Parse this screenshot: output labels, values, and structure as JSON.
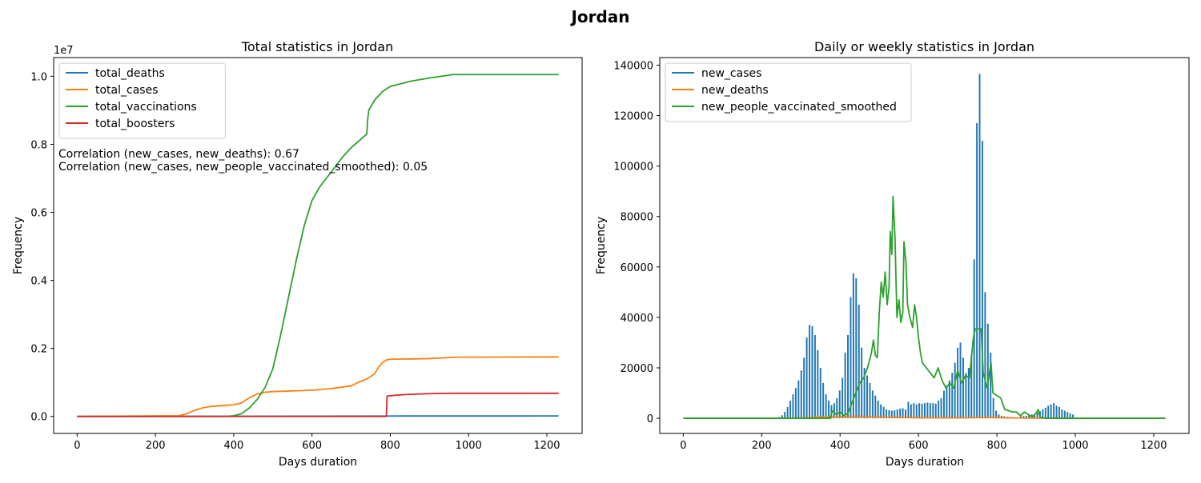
{
  "figure": {
    "title": "Jordan"
  },
  "chart_data": [
    {
      "type": "line",
      "title": "Total statistics in Jordan",
      "xlabel": "Days duration",
      "ylabel": "Frequency",
      "offset_text": "1e7",
      "xlim": [
        -60,
        1290
      ],
      "ylim": [
        -0.05,
        1.055
      ],
      "y_scale_note": "values in units of 1e7",
      "xticks": [
        0,
        200,
        400,
        600,
        800,
        1000,
        1200
      ],
      "yticks": [
        0.0,
        0.2,
        0.4,
        0.6,
        0.8,
        1.0
      ],
      "ytick_labels": [
        "0.0",
        "0.2",
        "0.4",
        "0.6",
        "0.8",
        "1.0"
      ],
      "legend_position": "upper-left",
      "annotations": [
        "Correlation (new_cases, new_deaths): 0.67",
        "Correlation (new_cases, new_people_vaccinated_smoothed): 0.05"
      ],
      "series": [
        {
          "name": "total_deaths",
          "color": "#1f77b4",
          "points": [
            [
              0,
              0
            ],
            [
              400,
              0.0005
            ],
            [
              800,
              0.0012
            ],
            [
              1230,
              0.0014
            ]
          ]
        },
        {
          "name": "total_cases",
          "color": "#ff7f0e",
          "points": [
            [
              0,
              0
            ],
            [
              260,
              0.002
            ],
            [
              280,
              0.008
            ],
            [
              300,
              0.018
            ],
            [
              320,
              0.025
            ],
            [
              340,
              0.029
            ],
            [
              360,
              0.031
            ],
            [
              400,
              0.034
            ],
            [
              420,
              0.04
            ],
            [
              440,
              0.055
            ],
            [
              460,
              0.066
            ],
            [
              480,
              0.071
            ],
            [
              500,
              0.073
            ],
            [
              600,
              0.077
            ],
            [
              650,
              0.082
            ],
            [
              700,
              0.09
            ],
            [
              720,
              0.101
            ],
            [
              740,
              0.11
            ],
            [
              760,
              0.125
            ],
            [
              770,
              0.145
            ],
            [
              780,
              0.158
            ],
            [
              790,
              0.166
            ],
            [
              800,
              0.168
            ],
            [
              900,
              0.17
            ],
            [
              960,
              0.174
            ],
            [
              1230,
              0.175
            ]
          ]
        },
        {
          "name": "total_vaccinations",
          "color": "#2ca02c",
          "points": [
            [
              0,
              0
            ],
            [
              380,
              0
            ],
            [
              400,
              0.002
            ],
            [
              420,
              0.008
            ],
            [
              440,
              0.025
            ],
            [
              460,
              0.05
            ],
            [
              480,
              0.085
            ],
            [
              500,
              0.14
            ],
            [
              510,
              0.19
            ],
            [
              520,
              0.24
            ],
            [
              540,
              0.35
            ],
            [
              560,
              0.46
            ],
            [
              580,
              0.56
            ],
            [
              600,
              0.635
            ],
            [
              620,
              0.675
            ],
            [
              640,
              0.705
            ],
            [
              660,
              0.735
            ],
            [
              680,
              0.765
            ],
            [
              700,
              0.79
            ],
            [
              720,
              0.81
            ],
            [
              740,
              0.83
            ],
            [
              742,
              0.87
            ],
            [
              745,
              0.9
            ],
            [
              760,
              0.93
            ],
            [
              780,
              0.955
            ],
            [
              800,
              0.97
            ],
            [
              850,
              0.985
            ],
            [
              900,
              0.995
            ],
            [
              960,
              1.005
            ],
            [
              1230,
              1.005
            ]
          ]
        },
        {
          "name": "total_boosters",
          "color": "#d62728",
          "points": [
            [
              0,
              0
            ],
            [
              790,
              0
            ],
            [
              792,
              0.06
            ],
            [
              810,
              0.062
            ],
            [
              850,
              0.065
            ],
            [
              900,
              0.067
            ],
            [
              960,
              0.068
            ],
            [
              1230,
              0.068
            ]
          ]
        }
      ]
    },
    {
      "type": "bar+line",
      "title": "Daily or weekly statistics in Jordan",
      "xlabel": "Days duration",
      "ylabel": "Frequency",
      "xlim": [
        -60,
        1290
      ],
      "ylim": [
        -6000,
        143000
      ],
      "xticks": [
        0,
        200,
        400,
        600,
        800,
        1000,
        1200
      ],
      "yticks": [
        0,
        20000,
        40000,
        60000,
        80000,
        100000,
        120000,
        140000
      ],
      "ytick_labels": [
        "0",
        "20000",
        "40000",
        "60000",
        "80000",
        "100000",
        "120000",
        "140000"
      ],
      "legend_position": "upper-left",
      "bar_width_days": 4,
      "series": [
        {
          "name": "new_cases",
          "color": "#1f77b4",
          "kind": "bar",
          "x": [
            238,
            245,
            252,
            259,
            266,
            273,
            280,
            287,
            294,
            301,
            308,
            315,
            322,
            329,
            336,
            343,
            350,
            357,
            364,
            371,
            378,
            385,
            392,
            399,
            406,
            413,
            420,
            427,
            434,
            441,
            448,
            455,
            462,
            469,
            476,
            483,
            490,
            497,
            504,
            511,
            518,
            525,
            532,
            539,
            546,
            553,
            560,
            567,
            574,
            581,
            588,
            595,
            602,
            609,
            616,
            623,
            630,
            637,
            644,
            651,
            658,
            665,
            672,
            679,
            686,
            693,
            700,
            707,
            714,
            721,
            728,
            735,
            742,
            749,
            756,
            763,
            770,
            777,
            784,
            791,
            798,
            805,
            812,
            819,
            826,
            833,
            840,
            847,
            854,
            861,
            868,
            875,
            882,
            889,
            896,
            903,
            910,
            917,
            924,
            931,
            938,
            945,
            952,
            959,
            966,
            973,
            980,
            987,
            994
          ],
          "values": [
            200,
            500,
            1200,
            2500,
            4500,
            7000,
            9500,
            12000,
            15000,
            19000,
            24000,
            32000,
            37000,
            36500,
            33000,
            27000,
            20000,
            14000,
            9500,
            7000,
            5200,
            6000,
            8000,
            11000,
            16000,
            26000,
            33000,
            48000,
            57500,
            55500,
            45000,
            28000,
            20000,
            17000,
            14000,
            11000,
            9000,
            7000,
            5500,
            4500,
            3500,
            3200,
            3000,
            3200,
            3500,
            3800,
            4000,
            3500,
            6500,
            5500,
            6000,
            5500,
            6000,
            5800,
            6000,
            6200,
            6000,
            6000,
            5800,
            7000,
            8000,
            11000,
            13000,
            15000,
            18000,
            22000,
            28000,
            30000,
            24000,
            18000,
            20000,
            25000,
            63000,
            117000,
            136500,
            110000,
            50000,
            37500,
            26000,
            8000,
            3000,
            1500,
            1000,
            800,
            600,
            500,
            400,
            300,
            200,
            800,
            900,
            1000,
            1200,
            1500,
            1800,
            2200,
            2800,
            3500,
            4200,
            5000,
            5500,
            6000,
            5000,
            4500,
            3500,
            3000,
            2500,
            2000,
            1500
          ]
        },
        {
          "name": "new_deaths",
          "color": "#ff7f0e",
          "kind": "line",
          "points": [
            [
              0,
              0
            ],
            [
              250,
              20
            ],
            [
              300,
              150
            ],
            [
              330,
              300
            ],
            [
              370,
              600
            ],
            [
              450,
              800
            ],
            [
              500,
              500
            ],
            [
              600,
              200
            ],
            [
              700,
              150
            ],
            [
              780,
              300
            ],
            [
              850,
              100
            ],
            [
              955,
              50
            ],
            [
              960,
              0
            ],
            [
              1230,
              0
            ]
          ]
        },
        {
          "name": "new_people_vaccinated_smoothed",
          "color": "#2ca02c",
          "kind": "line",
          "points": [
            [
              0,
              0
            ],
            [
              375,
              0
            ],
            [
              380,
              3000
            ],
            [
              390,
              1500
            ],
            [
              400,
              2500
            ],
            [
              410,
              1000
            ],
            [
              420,
              2000
            ],
            [
              430,
              6000
            ],
            [
              440,
              10000
            ],
            [
              450,
              14000
            ],
            [
              460,
              16000
            ],
            [
              470,
              20000
            ],
            [
              480,
              26000
            ],
            [
              485,
              31000
            ],
            [
              490,
              25000
            ],
            [
              495,
              24000
            ],
            [
              500,
              42000
            ],
            [
              505,
              54000
            ],
            [
              510,
              48000
            ],
            [
              515,
              58000
            ],
            [
              520,
              45000
            ],
            [
              525,
              52000
            ],
            [
              528,
              74000
            ],
            [
              532,
              65000
            ],
            [
              535,
              88000
            ],
            [
              540,
              72000
            ],
            [
              545,
              40000
            ],
            [
              550,
              47000
            ],
            [
              555,
              38000
            ],
            [
              560,
              42000
            ],
            [
              563,
              70000
            ],
            [
              568,
              62000
            ],
            [
              572,
              45000
            ],
            [
              578,
              40000
            ],
            [
              585,
              36000
            ],
            [
              590,
              45000
            ],
            [
              595,
              40000
            ],
            [
              600,
              32000
            ],
            [
              605,
              26000
            ],
            [
              610,
              22000
            ],
            [
              620,
              20000
            ],
            [
              630,
              18000
            ],
            [
              640,
              16000
            ],
            [
              650,
              20000
            ],
            [
              660,
              15000
            ],
            [
              670,
              12000
            ],
            [
              680,
              14000
            ],
            [
              690,
              12000
            ],
            [
              700,
              19000
            ],
            [
              710,
              14000
            ],
            [
              720,
              17000
            ],
            [
              730,
              16000
            ],
            [
              740,
              32000
            ],
            [
              745,
              35500
            ],
            [
              760,
              35500
            ],
            [
              765,
              18000
            ],
            [
              775,
              12000
            ],
            [
              785,
              22000
            ],
            [
              790,
              10000
            ],
            [
              800,
              9000
            ],
            [
              810,
              8000
            ],
            [
              820,
              3500
            ],
            [
              830,
              3000
            ],
            [
              840,
              2500
            ],
            [
              850,
              2500
            ],
            [
              860,
              1000
            ],
            [
              870,
              2500
            ],
            [
              880,
              1500
            ],
            [
              890,
              500
            ],
            [
              900,
              2000
            ],
            [
              905,
              3500
            ],
            [
              910,
              500
            ],
            [
              920,
              0
            ],
            [
              1230,
              0
            ]
          ]
        }
      ]
    }
  ]
}
